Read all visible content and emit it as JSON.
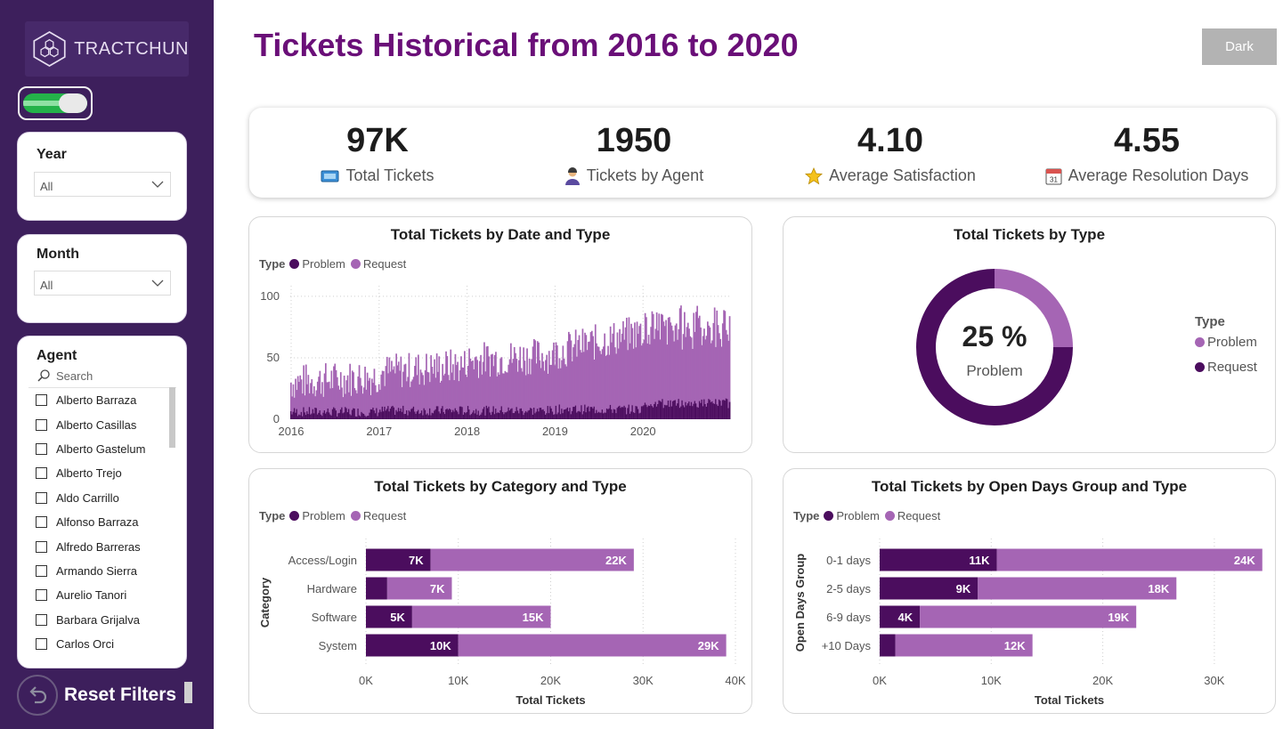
{
  "sidebar": {
    "logo_text": "TRACTCHUN",
    "filters": {
      "year": {
        "label": "Year",
        "value": "All"
      },
      "month": {
        "label": "Month",
        "value": "All"
      },
      "agent": {
        "label": "Agent",
        "search_placeholder": "Search",
        "items": [
          "Alberto Barraza",
          "Alberto Casillas",
          "Alberto Gastelum",
          "Alberto Trejo",
          "Aldo Carrillo",
          "Alfonso Barraza",
          "Alfredo Barreras",
          "Armando Sierra",
          "Aurelio Tanori",
          "Barbara Grijalva",
          "Carlos Orci"
        ]
      }
    },
    "reset_label": "Reset Filters"
  },
  "header": {
    "title": "Tickets Historical from 2016 to 2020",
    "theme_button": "Dark"
  },
  "kpis": [
    {
      "value": "97K",
      "label": "Total Tickets",
      "icon": "ticket-icon"
    },
    {
      "value": "1950",
      "label": "Tickets by Agent",
      "icon": "agent-icon"
    },
    {
      "value": "4.10",
      "label": "Average Satisfaction",
      "icon": "star-icon"
    },
    {
      "value": "4.55",
      "label": "Average Resolution Days",
      "icon": "calendar-icon"
    }
  ],
  "colors": {
    "problem": "#4b0d5e",
    "request": "#a565b4",
    "sidebar": "#3d1f5c",
    "title": "#6a0f78"
  },
  "legend": {
    "title": "Type",
    "problem": "Problem",
    "request": "Request"
  },
  "chart_data": [
    {
      "type": "bar",
      "title": "Total Tickets by Date and Type",
      "x_ticks": [
        "2016",
        "2017",
        "2018",
        "2019",
        "2020"
      ],
      "y_ticks": [
        0,
        50,
        100
      ],
      "ylim": [
        0,
        105
      ],
      "legend": [
        "Problem",
        "Request"
      ],
      "series": [
        {
          "name": "Problem",
          "approx_daily": {
            "2016": 6,
            "2017": 7,
            "2018": 7,
            "2019": 8,
            "2020": 13
          }
        },
        {
          "name": "Request",
          "approx_daily": {
            "2016": 30,
            "2017": 38,
            "2018": 48,
            "2019": 55,
            "2020": 82
          }
        }
      ]
    },
    {
      "type": "pie",
      "title": "Total Tickets by Type",
      "center_value": "25 %",
      "center_label": "Problem",
      "labels": [
        "Problem",
        "Request"
      ],
      "values": [
        25,
        75
      ]
    },
    {
      "type": "bar",
      "orientation": "horizontal",
      "stacked": true,
      "title": "Total Tickets by Category and Type",
      "ylabel": "Category",
      "xlabel": "Total Tickets",
      "categories": [
        "Access/Login",
        "Hardware",
        "Software",
        "System"
      ],
      "x_ticks": [
        "0K",
        "10K",
        "20K",
        "30K",
        "40K"
      ],
      "xlim": [
        0,
        40000
      ],
      "series": [
        {
          "name": "Problem",
          "values": [
            7000,
            2300,
            5000,
            10000
          ],
          "labels": [
            "7K",
            "",
            "5K",
            "10K"
          ]
        },
        {
          "name": "Request",
          "values": [
            22000,
            7000,
            15000,
            29000
          ],
          "labels": [
            "22K",
            "7K",
            "15K",
            "29K"
          ]
        }
      ]
    },
    {
      "type": "bar",
      "orientation": "horizontal",
      "stacked": true,
      "title": "Total Tickets by Open Days Group and Type",
      "ylabel": "Open Days Group",
      "xlabel": "Total Tickets",
      "categories": [
        "0-1 days",
        "2-5 days",
        "6-9 days",
        "+10 Days"
      ],
      "x_ticks": [
        "0K",
        "10K",
        "20K",
        "30K"
      ],
      "xlim": [
        0,
        34000
      ],
      "series": [
        {
          "name": "Problem",
          "values": [
            10500,
            8800,
            3600,
            1400
          ],
          "labels": [
            "11K",
            "9K",
            "4K",
            ""
          ]
        },
        {
          "name": "Request",
          "values": [
            23800,
            17800,
            19400,
            12300
          ],
          "labels": [
            "24K",
            "18K",
            "19K",
            "12K"
          ]
        }
      ]
    }
  ]
}
